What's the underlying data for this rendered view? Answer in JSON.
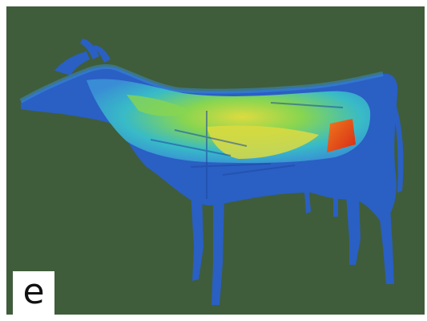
{
  "figure": {
    "panel_label": "e",
    "subject": "cow-heat-map-render",
    "colors": {
      "background": "#3f5d3a",
      "body_base": "#2a5fc4",
      "low": "#3a8fd6",
      "mid_low": "#39c0c8",
      "mid": "#8ddc4a",
      "mid_high": "#e7e23a",
      "high": "#e23c1e"
    }
  }
}
